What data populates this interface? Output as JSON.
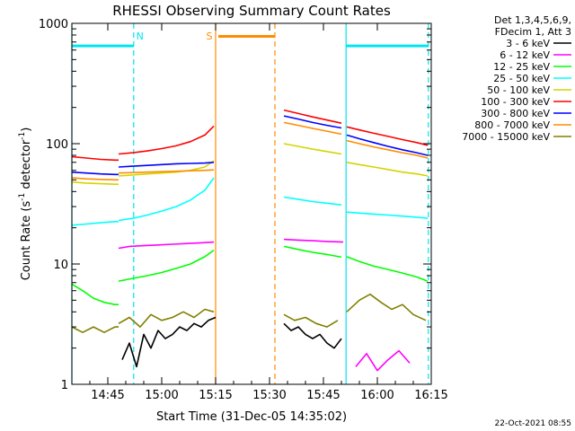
{
  "chart_data": {
    "type": "line",
    "title": "RHESSI Observing Summary Count Rates",
    "xlabel": "Start Time (31-Dec-05 14:35:02)",
    "ylabel_main": "Count Rate (s",
    "ylabel_sup1": "-1",
    "ylabel_mid": " detector",
    "ylabel_sup2": "-1",
    "ylabel_end": ")",
    "x_unit": "minutes after 14:35:02",
    "xlim": [
      0,
      100
    ],
    "ylim": [
      1,
      1000
    ],
    "yscale": "log",
    "x_ticks": [
      {
        "label": "14:45",
        "value": 10
      },
      {
        "label": "15:00",
        "value": 25
      },
      {
        "label": "15:15",
        "value": 40
      },
      {
        "label": "15:30",
        "value": 55
      },
      {
        "label": "15:45",
        "value": 70
      },
      {
        "label": "16:00",
        "value": 85
      },
      {
        "label": "16:15",
        "value": 100
      }
    ],
    "y_ticks": [
      {
        "label": "1",
        "value": 1
      },
      {
        "label": "10",
        "value": 10
      },
      {
        "label": "100",
        "value": 100
      },
      {
        "label": "1000",
        "value": 1000
      }
    ],
    "legend_header": [
      "Det 1,3,4,5,6,9,",
      "FDecim 1, Att 3"
    ],
    "footer": "22-Oct-2021 08:55",
    "markers": [
      {
        "label": "N",
        "x": 17.2,
        "color": "#00e5ee"
      },
      {
        "label": "S",
        "x": 40.0,
        "color": "#ff8c00"
      }
    ],
    "night_bars": [
      {
        "color": "#00e5ee",
        "x": [
          0,
          17.2
        ],
        "y": 650
      },
      {
        "color": "#00e5ee",
        "x": [
          76.3,
          99.2
        ],
        "y": 650
      }
    ],
    "saa_bar": {
      "color": "#ff8c00",
      "x": [
        40.0,
        56.5
      ],
      "y": 780
    },
    "vlines": [
      {
        "x": 0.0,
        "color": "#00e5ee",
        "style": "solid"
      },
      {
        "x": 17.2,
        "color": "#00e5ee",
        "style": "dashed"
      },
      {
        "x": 40.0,
        "color": "#ff8c00",
        "style": "solid"
      },
      {
        "x": 56.5,
        "color": "#ff8c00",
        "style": "dashed"
      },
      {
        "x": 76.3,
        "color": "#00e5ee",
        "style": "solid"
      },
      {
        "x": 99.2,
        "color": "#00e5ee",
        "style": "dashed"
      }
    ],
    "series": [
      {
        "name": "3 - 6 keV",
        "color": "#000000",
        "segments": [
          {
            "x": [
              14,
              16,
              18,
              20,
              22,
              24,
              26,
              28,
              30,
              32,
              34,
              36,
              38,
              40
            ],
            "y": [
              1.6,
              2.2,
              1.4,
              2.6,
              2.0,
              2.8,
              2.4,
              2.6,
              3.0,
              2.8,
              3.2,
              3.0,
              3.4,
              3.6
            ]
          },
          {
            "x": [
              59,
              61,
              63,
              65,
              67,
              69,
              71,
              73,
              75
            ],
            "y": [
              3.2,
              2.8,
              3.0,
              2.6,
              2.4,
              2.6,
              2.2,
              2.0,
              2.4
            ]
          }
        ]
      },
      {
        "name": "6 - 12 keV",
        "color": "#ff00ff",
        "segments": [
          {
            "x": [
              13,
              16,
              20,
              24,
              28,
              32,
              36,
              39.5
            ],
            "y": [
              13.5,
              14.0,
              14.2,
              14.4,
              14.6,
              14.8,
              15.0,
              15.2
            ]
          },
          {
            "x": [
              59,
              63,
              67,
              71,
              75.5
            ],
            "y": [
              16.0,
              15.8,
              15.6,
              15.4,
              15.2
            ]
          },
          {
            "x": [
              79,
              82,
              85,
              88,
              91,
              94
            ],
            "y": [
              1.4,
              1.8,
              1.3,
              1.6,
              1.9,
              1.5
            ]
          }
        ]
      },
      {
        "name": "12 - 25 keV",
        "color": "#00ff00",
        "segments": [
          {
            "x": [
              0,
              3,
              6,
              9,
              12,
              13
            ],
            "y": [
              6.8,
              6.0,
              5.2,
              4.8,
              4.6,
              4.6
            ]
          },
          {
            "x": [
              13,
              17,
              21,
              25,
              29,
              33,
              37,
              39.5
            ],
            "y": [
              7.2,
              7.6,
              8.0,
              8.5,
              9.2,
              10.0,
              11.5,
              13.0
            ]
          },
          {
            "x": [
              59,
              63,
              67,
              71,
              75
            ],
            "y": [
              14.0,
              13.2,
              12.5,
              12.0,
              11.4
            ]
          },
          {
            "x": [
              76.5,
              80,
              84,
              88,
              92,
              96,
              99
            ],
            "y": [
              11.5,
              10.5,
              9.6,
              9.0,
              8.4,
              7.8,
              7.2
            ]
          }
        ]
      },
      {
        "name": "25 - 50 keV",
        "color": "#00ffff",
        "segments": [
          {
            "x": [
              0,
              4,
              8,
              12,
              13
            ],
            "y": [
              21.0,
              21.5,
              22.0,
              22.5,
              22.5
            ]
          },
          {
            "x": [
              13,
              17,
              21,
              25,
              29,
              33,
              37,
              39.5
            ],
            "y": [
              23.0,
              24.0,
              25.5,
              27.5,
              30.0,
              34.0,
              41.0,
              52.0
            ]
          },
          {
            "x": [
              59,
              63,
              67,
              71,
              75
            ],
            "y": [
              36.0,
              34.5,
              33.0,
              32.0,
              31.0
            ]
          },
          {
            "x": [
              76.5,
              80,
              84,
              88,
              92,
              96,
              99
            ],
            "y": [
              27.0,
              26.5,
              26.0,
              25.5,
              25.0,
              24.5,
              24.0
            ]
          }
        ]
      },
      {
        "name": "50 - 100 keV",
        "color": "#d4d400",
        "segments": [
          {
            "x": [
              0,
              4,
              8,
              12,
              13
            ],
            "y": [
              48.0,
              47.0,
              46.5,
              46.0,
              46.0
            ]
          },
          {
            "x": [
              13,
              17,
              21,
              25,
              29,
              33,
              37,
              39.5
            ],
            "y": [
              54.0,
              55.0,
              56.0,
              57.0,
              58.0,
              60.0,
              64.0,
              72.0
            ]
          },
          {
            "x": [
              59,
              63,
              67,
              71,
              75
            ],
            "y": [
              100.0,
              95.0,
              90.0,
              86.0,
              82.0
            ]
          },
          {
            "x": [
              76.5,
              80,
              84,
              88,
              92,
              96,
              99
            ],
            "y": [
              70.0,
              67.0,
              64.0,
              61.0,
              58.0,
              56.0,
              54.0
            ]
          }
        ]
      },
      {
        "name": "100 - 300 keV",
        "color": "#ff0000",
        "segments": [
          {
            "x": [
              0,
              4,
              8,
              12,
              13
            ],
            "y": [
              78.0,
              76.0,
              74.0,
              73.0,
              73.0
            ]
          },
          {
            "x": [
              13,
              17,
              21,
              25,
              29,
              33,
              37,
              39.5
            ],
            "y": [
              82.0,
              84.0,
              87.0,
              91.0,
              96.0,
              104.0,
              118.0,
              140.0
            ]
          },
          {
            "x": [
              59,
              63,
              67,
              71,
              75
            ],
            "y": [
              190.0,
              178.0,
              167.0,
              157.0,
              148.0
            ]
          },
          {
            "x": [
              76.5,
              80,
              84,
              88,
              92,
              96,
              99
            ],
            "y": [
              138.0,
              130.0,
              122.0,
              115.0,
              108.0,
              102.0,
              97.0
            ]
          }
        ]
      },
      {
        "name": "300 - 800 keV",
        "color": "#0000ff",
        "segments": [
          {
            "x": [
              0,
              4,
              8,
              12,
              13
            ],
            "y": [
              58.0,
              57.0,
              56.0,
              55.5,
              55.5
            ]
          },
          {
            "x": [
              13,
              17,
              21,
              25,
              29,
              33,
              37,
              39.5
            ],
            "y": [
              64.0,
              65.0,
              66.0,
              67.0,
              68.0,
              68.5,
              69.0,
              70.0
            ]
          },
          {
            "x": [
              59,
              63,
              67,
              71,
              75
            ],
            "y": [
              170.0,
              160.0,
              150.0,
              142.0,
              135.0
            ]
          },
          {
            "x": [
              76.5,
              80,
              84,
              88,
              92,
              96,
              99
            ],
            "y": [
              118.0,
              110.0,
              102.0,
              95.0,
              89.0,
              84.0,
              80.0
            ]
          }
        ]
      },
      {
        "name": "800 - 7000 keV",
        "color": "#ff8c00",
        "segments": [
          {
            "x": [
              0,
              4,
              8,
              12,
              13
            ],
            "y": [
              52.0,
              51.0,
              50.5,
              50.0,
              50.0
            ]
          },
          {
            "x": [
              13,
              17,
              21,
              25,
              29,
              33,
              37,
              39.5
            ],
            "y": [
              57.0,
              57.5,
              58.0,
              58.5,
              59.0,
              59.5,
              60.0,
              60.5
            ]
          },
          {
            "x": [
              59,
              63,
              67,
              71,
              75
            ],
            "y": [
              150.0,
              142.0,
              134.0,
              127.0,
              120.0
            ]
          },
          {
            "x": [
              76.5,
              80,
              84,
              88,
              92,
              96,
              99
            ],
            "y": [
              106.0,
              100.0,
              94.0,
              89.0,
              84.0,
              80.0,
              76.0
            ]
          }
        ]
      },
      {
        "name": "7000 - 15000 keV",
        "color": "#808000",
        "segments": [
          {
            "x": [
              0,
              3,
              6,
              9,
              12,
              13
            ],
            "y": [
              3.0,
              2.7,
              3.0,
              2.7,
              3.0,
              3.0
            ]
          },
          {
            "x": [
              13,
              16,
              19,
              22,
              25,
              28,
              31,
              34,
              37,
              39.5
            ],
            "y": [
              3.2,
              3.6,
              3.0,
              3.8,
              3.4,
              3.6,
              4.0,
              3.6,
              4.2,
              4.0
            ]
          },
          {
            "x": [
              59,
              62,
              65,
              68,
              71,
              74
            ],
            "y": [
              3.8,
              3.4,
              3.6,
              3.2,
              3.0,
              3.4
            ]
          },
          {
            "x": [
              76.5,
              80,
              83,
              86,
              89,
              92,
              95,
              98.5
            ],
            "y": [
              4.0,
              5.0,
              5.6,
              4.8,
              4.2,
              4.6,
              3.8,
              3.4
            ]
          }
        ]
      }
    ]
  }
}
